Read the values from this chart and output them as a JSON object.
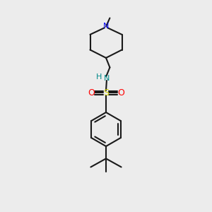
{
  "bg_color": "#ececec",
  "line_color": "#1a1a1a",
  "N_color": "#0000ee",
  "NH_color": "#008888",
  "S_color": "#cccc00",
  "O_color": "#ff0000",
  "line_width": 1.5,
  "fig_width": 3.0,
  "fig_height": 3.0,
  "dpi": 100,
  "xlim": [
    0,
    10
  ],
  "ylim": [
    0,
    10
  ]
}
